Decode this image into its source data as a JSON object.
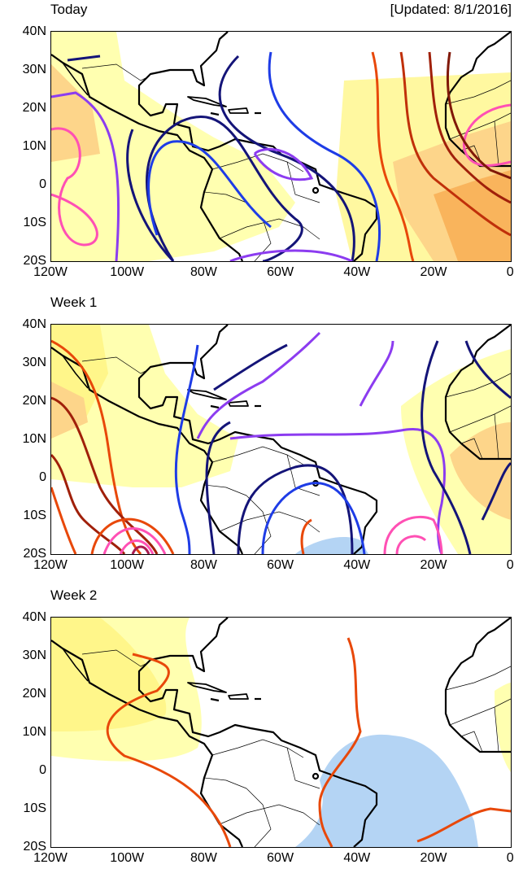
{
  "panels": [
    {
      "title": "Today",
      "updated": "[Updated: 8/1/2016]"
    },
    {
      "title": "Week 1"
    },
    {
      "title": "Week 2"
    }
  ],
  "lat_labels": [
    "40N",
    "30N",
    "20N",
    "10N",
    "0",
    "10S",
    "20S"
  ],
  "lon_labels": [
    "120W",
    "100W",
    "80W",
    "60W",
    "40W",
    "20W",
    "0"
  ],
  "colors": {
    "shade_light": "#FFFFB0",
    "shade_yellow": "#FFF68A",
    "shade_orange": "#FDD58A",
    "shade_dark_orange": "#F9B45C",
    "shade_blue": "#B4D4F4",
    "navy": "#141478",
    "blue": "#1E3CE6",
    "purple": "#8C3CF0",
    "pink": "#FF50B4",
    "orange": "#E8480A",
    "dark_red": "#A0200A"
  }
}
